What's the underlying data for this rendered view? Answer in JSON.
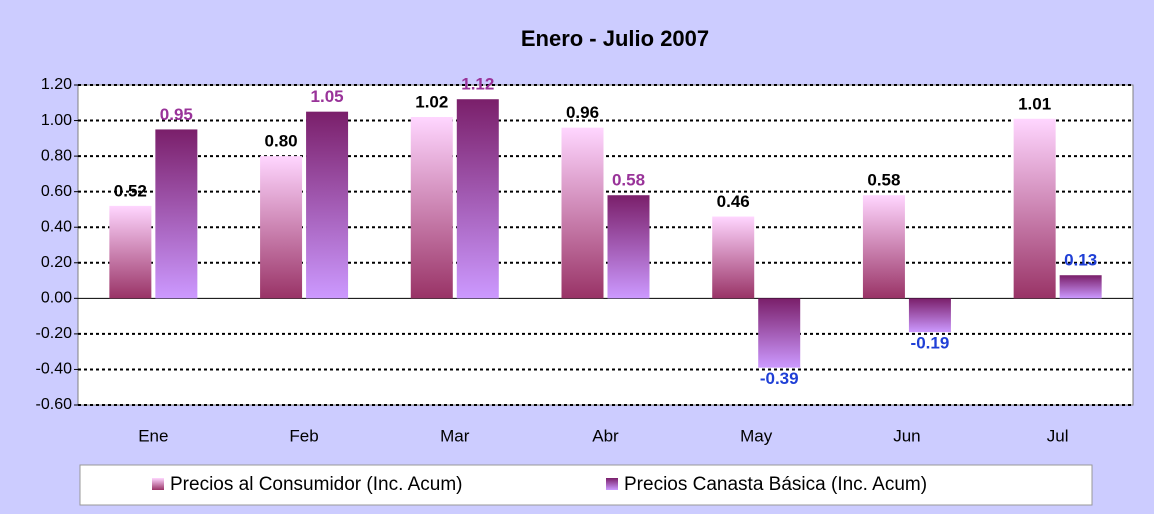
{
  "chart_data": {
    "type": "bar",
    "title": "Enero - Julio 2007",
    "categories": [
      "Ene",
      "Feb",
      "Mar",
      "Abr",
      "May",
      "Jun",
      "Jul"
    ],
    "series": [
      {
        "name": "Precios al Consumidor (Inc. Acum)",
        "gradient": [
          "#ffd6ff",
          "#993366"
        ],
        "values": [
          0.52,
          0.8,
          1.02,
          0.96,
          0.46,
          0.58,
          1.01
        ],
        "value_labels": [
          "0.52",
          "0.80",
          "1.02",
          "0.96",
          "0.46",
          "0.58",
          "1.01"
        ],
        "value_label_colors": [
          "#000000",
          "#000000",
          "#000000",
          "#000000",
          "#000000",
          "#000000",
          "#000000"
        ]
      },
      {
        "name": "Precios Canasta Básica (Inc. Acum)",
        "gradient": [
          "#7a1f6a",
          "#cc99ff"
        ],
        "values": [
          0.95,
          1.05,
          1.12,
          0.58,
          -0.39,
          -0.19,
          0.13
        ],
        "value_labels": [
          "0.95",
          "1.05",
          "1.12",
          "0.58",
          "-0.39",
          "-0.19",
          "0.13"
        ],
        "value_label_colors": [
          "#993399",
          "#993399",
          "#993399",
          "#993399",
          "#1f3fd6",
          "#1f3fd6",
          "#1f3fd6"
        ]
      }
    ],
    "ylim": [
      -0.6,
      1.2
    ],
    "yticks": [
      {
        "value": -0.6,
        "label": "-0.60"
      },
      {
        "value": -0.4,
        "label": "-0.40"
      },
      {
        "value": -0.2,
        "label": "-0.20"
      },
      {
        "value": 0,
        "label": "0.00"
      },
      {
        "value": 0.2,
        "label": "0.20"
      },
      {
        "value": 0.4,
        "label": "0.40"
      },
      {
        "value": 0.6,
        "label": "0.60"
      },
      {
        "value": 0.8,
        "label": "0.80"
      },
      {
        "value": 1.0,
        "label": "1.00"
      },
      {
        "value": 1.2,
        "label": "1.20"
      }
    ],
    "grid": true,
    "legend": "bottom"
  }
}
